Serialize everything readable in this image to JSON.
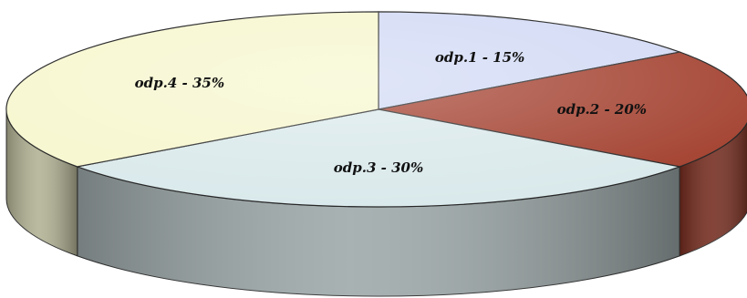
{
  "chart_data": {
    "type": "pie",
    "style": "3d",
    "labels": [
      "odp.1 - 15%",
      "odp.2 - 20%",
      "odp.3 - 30%",
      "odp.4 - 35%"
    ],
    "values": [
      15,
      20,
      30,
      35
    ],
    "colors": [
      "#d0d8f4",
      "#a03a28",
      "#d8e8ea",
      "#f6f6cc"
    ],
    "title": "",
    "legend": "none"
  }
}
